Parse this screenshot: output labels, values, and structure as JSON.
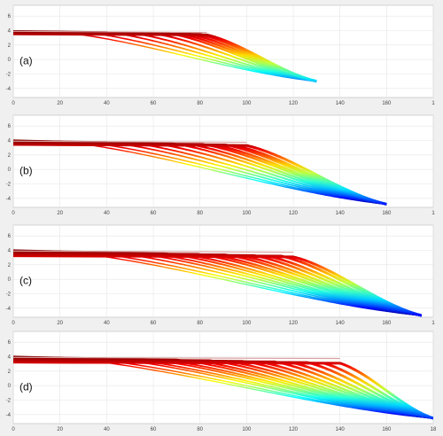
{
  "chart_data": [
    {
      "type": "line",
      "panel_label": "(a)",
      "xlim": [
        0,
        180
      ],
      "ylim": [
        -5,
        7
      ],
      "x_ticks": [
        "0",
        "20",
        "40",
        "60",
        "80",
        "100",
        "120",
        "140",
        "160",
        "1"
      ],
      "y_ticks": [
        "6",
        "4",
        "2",
        "0",
        "-2",
        "-4"
      ],
      "grid": true,
      "colormap": "jet",
      "series": [
        {
          "plateau_end": 20,
          "plateau_y": 3.8,
          "end_x": 130,
          "end_y": -3
        },
        {
          "plateau_end": 30,
          "plateau_y": 3.8,
          "end_x": 130,
          "end_y": -3
        },
        {
          "plateau_end": 40,
          "plateau_y": 3.8,
          "end_x": 130,
          "end_y": -3
        },
        {
          "plateau_end": 50,
          "plateau_y": 3.7,
          "end_x": 130,
          "end_y": -3
        },
        {
          "plateau_end": 60,
          "plateau_y": 3.6,
          "end_x": 130,
          "end_y": -3
        },
        {
          "plateau_end": 67,
          "plateau_y": 3.6,
          "end_x": 130,
          "end_y": -3
        },
        {
          "plateau_end": 72,
          "plateau_y": 3.5,
          "end_x": 130,
          "end_y": -3
        },
        {
          "plateau_end": 76,
          "plateau_y": 3.5,
          "end_x": 130,
          "end_y": -3
        },
        {
          "plateau_end": 80,
          "plateau_y": 3.5,
          "end_x": 130,
          "end_y": -3
        },
        {
          "plateau_end": 83,
          "plateau_y": 3.4,
          "end_x": 130,
          "end_y": -3
        }
      ]
    },
    {
      "type": "line",
      "panel_label": "(b)",
      "xlim": [
        0,
        180
      ],
      "ylim": [
        -5,
        7
      ],
      "x_ticks": [
        "0",
        "20",
        "40",
        "60",
        "80",
        "100",
        "120",
        "140",
        "160",
        "1"
      ],
      "y_ticks": [
        "6",
        "4",
        "2",
        "0",
        "-2",
        "-4"
      ],
      "grid": true,
      "colormap": "jet",
      "series": [
        {
          "plateau_end": 20,
          "plateau_y": 3.9,
          "end_x": 160,
          "end_y": -4.8
        },
        {
          "plateau_end": 30,
          "plateau_y": 3.8,
          "end_x": 160,
          "end_y": -4.8
        },
        {
          "plateau_end": 40,
          "plateau_y": 3.8,
          "end_x": 160,
          "end_y": -4.8
        },
        {
          "plateau_end": 50,
          "plateau_y": 3.7,
          "end_x": 160,
          "end_y": -4.8
        },
        {
          "plateau_end": 60,
          "plateau_y": 3.6,
          "end_x": 160,
          "end_y": -4.8
        },
        {
          "plateau_end": 68,
          "plateau_y": 3.6,
          "end_x": 160,
          "end_y": -4.8
        },
        {
          "plateau_end": 75,
          "plateau_y": 3.5,
          "end_x": 160,
          "end_y": -4.8
        },
        {
          "plateau_end": 81,
          "plateau_y": 3.5,
          "end_x": 160,
          "end_y": -4.8
        },
        {
          "plateau_end": 86,
          "plateau_y": 3.4,
          "end_x": 160,
          "end_y": -4.8
        },
        {
          "plateau_end": 91,
          "plateau_y": 3.4,
          "end_x": 160,
          "end_y": -4.8
        },
        {
          "plateau_end": 95,
          "plateau_y": 3.3,
          "end_x": 160,
          "end_y": -4.8
        },
        {
          "plateau_end": 100,
          "plateau_y": 3.3,
          "end_x": 160,
          "end_y": -4.8
        }
      ]
    },
    {
      "type": "line",
      "panel_label": "(c)",
      "xlim": [
        0,
        180
      ],
      "ylim": [
        -5,
        7
      ],
      "x_ticks": [
        "0",
        "20",
        "40",
        "60",
        "80",
        "100",
        "120",
        "140",
        "160",
        "1"
      ],
      "y_ticks": [
        "6",
        "4",
        "2",
        "0",
        "-2",
        "-4"
      ],
      "grid": true,
      "colormap": "jet",
      "series": [
        {
          "plateau_end": 20,
          "plateau_y": 3.9,
          "end_x": 175,
          "end_y": -5
        },
        {
          "plateau_end": 30,
          "plateau_y": 3.8,
          "end_x": 175,
          "end_y": -5
        },
        {
          "plateau_end": 40,
          "plateau_y": 3.8,
          "end_x": 175,
          "end_y": -5
        },
        {
          "plateau_end": 50,
          "plateau_y": 3.7,
          "end_x": 175,
          "end_y": -5
        },
        {
          "plateau_end": 58,
          "plateau_y": 3.6,
          "end_x": 175,
          "end_y": -5
        },
        {
          "plateau_end": 65,
          "plateau_y": 3.6,
          "end_x": 175,
          "end_y": -5
        },
        {
          "plateau_end": 72,
          "plateau_y": 3.5,
          "end_x": 175,
          "end_y": -5
        },
        {
          "plateau_end": 79,
          "plateau_y": 3.5,
          "end_x": 175,
          "end_y": -5
        },
        {
          "plateau_end": 85,
          "plateau_y": 3.4,
          "end_x": 175,
          "end_y": -5
        },
        {
          "plateau_end": 91,
          "plateau_y": 3.4,
          "end_x": 175,
          "end_y": -5
        },
        {
          "plateau_end": 97,
          "plateau_y": 3.3,
          "end_x": 175,
          "end_y": -5
        },
        {
          "plateau_end": 103,
          "plateau_y": 3.3,
          "end_x": 175,
          "end_y": -5
        },
        {
          "plateau_end": 109,
          "plateau_y": 3.2,
          "end_x": 175,
          "end_y": -5
        },
        {
          "plateau_end": 115,
          "plateau_y": 3.2,
          "end_x": 175,
          "end_y": -5
        },
        {
          "plateau_end": 120,
          "plateau_y": 3.1,
          "end_x": 175,
          "end_y": -5
        }
      ]
    },
    {
      "type": "line",
      "panel_label": "(d)",
      "xlim": [
        0,
        180
      ],
      "ylim": [
        -5,
        7
      ],
      "x_ticks": [
        "0",
        "20",
        "40",
        "60",
        "80",
        "100",
        "120",
        "140",
        "160",
        "18"
      ],
      "y_ticks": [
        "6",
        "4",
        "2",
        "0",
        "-2",
        "-4"
      ],
      "grid": true,
      "colormap": "jet",
      "series": [
        {
          "plateau_end": 20,
          "plateau_y": 3.9,
          "end_x": 180,
          "end_y": -4.5
        },
        {
          "plateau_end": 30,
          "plateau_y": 3.8,
          "end_x": 180,
          "end_y": -4.5
        },
        {
          "plateau_end": 40,
          "plateau_y": 3.8,
          "end_x": 180,
          "end_y": -4.5
        },
        {
          "plateau_end": 48,
          "plateau_y": 3.7,
          "end_x": 180,
          "end_y": -4.5
        },
        {
          "plateau_end": 56,
          "plateau_y": 3.7,
          "end_x": 180,
          "end_y": -4.5
        },
        {
          "plateau_end": 63,
          "plateau_y": 3.6,
          "end_x": 180,
          "end_y": -4.5
        },
        {
          "plateau_end": 70,
          "plateau_y": 3.6,
          "end_x": 180,
          "end_y": -4.5
        },
        {
          "plateau_end": 77,
          "plateau_y": 3.5,
          "end_x": 180,
          "end_y": -4.5
        },
        {
          "plateau_end": 84,
          "plateau_y": 3.5,
          "end_x": 180,
          "end_y": -4.5
        },
        {
          "plateau_end": 91,
          "plateau_y": 3.4,
          "end_x": 180,
          "end_y": -4.5
        },
        {
          "plateau_end": 98,
          "plateau_y": 3.4,
          "end_x": 180,
          "end_y": -4.5
        },
        {
          "plateau_end": 105,
          "plateau_y": 3.3,
          "end_x": 180,
          "end_y": -4.5
        },
        {
          "plateau_end": 112,
          "plateau_y": 3.3,
          "end_x": 180,
          "end_y": -4.5
        },
        {
          "plateau_end": 119,
          "plateau_y": 3.2,
          "end_x": 180,
          "end_y": -4.5
        },
        {
          "plateau_end": 126,
          "plateau_y": 3.2,
          "end_x": 180,
          "end_y": -4.5
        },
        {
          "plateau_end": 133,
          "plateau_y": 3.1,
          "end_x": 180,
          "end_y": -4.5
        },
        {
          "plateau_end": 140,
          "plateau_y": 3.1,
          "end_x": 180,
          "end_y": -4.5
        }
      ]
    }
  ]
}
